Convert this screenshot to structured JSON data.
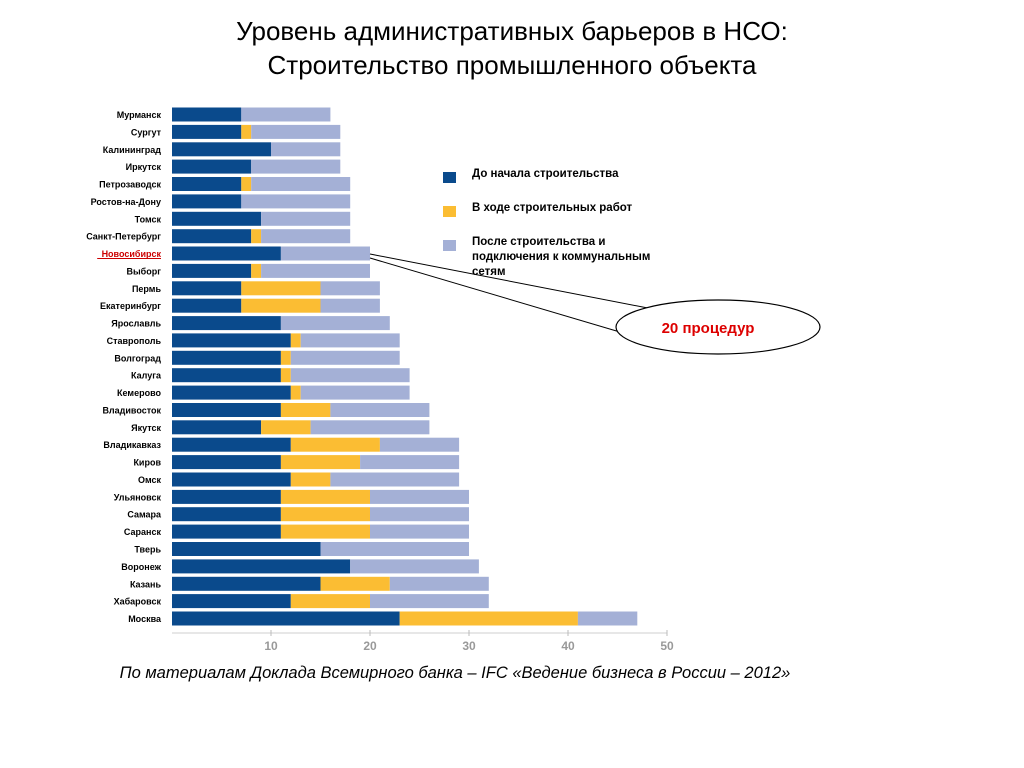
{
  "title": {
    "line1": "Уровень административных барьеров в НСО:",
    "line2": "Строительство промышленного объекта"
  },
  "source": "По материалам Доклада Всемирного банка – IFC «Ведение бизнеса в России – 2012»",
  "callout": "20 процедур",
  "highlight_city": "Новосибирск",
  "colors": {
    "before": "#0a4a8c",
    "during": "#fbbd33",
    "after": "#a4b0d6",
    "highlight_text": "#cc0000",
    "callout_text": "#dd0000",
    "axis_tick_text": "#999999"
  },
  "chart_data": {
    "type": "bar",
    "orientation": "horizontal",
    "stacked": true,
    "categories": [
      "Мурманск",
      "Сургут",
      "Калининград",
      "Иркутск",
      "Петрозаводск",
      "Ростов-на-Дону",
      "Томск",
      "Санкт-Петербург",
      "Новосибирск",
      "Выборг",
      "Пермь",
      "Екатеринбург",
      "Ярославль",
      "Ставрополь",
      "Волгоград",
      "Калуга",
      "Кемерово",
      "Владивосток",
      "Якутск",
      "Владикавказ",
      "Киров",
      "Омск",
      "Ульяновск",
      "Самара",
      "Саранск",
      "Тверь",
      "Воронеж",
      "Казань",
      "Хабаровск",
      "Москва"
    ],
    "series": [
      {
        "name": "До  начала строительства",
        "values": [
          7,
          7,
          10,
          8,
          7,
          7,
          9,
          8,
          11,
          8,
          7,
          7,
          11,
          12,
          11,
          11,
          12,
          11,
          9,
          12,
          11,
          12,
          11,
          11,
          11,
          15,
          18,
          15,
          12,
          23
        ]
      },
      {
        "name": "В ходе строительных работ",
        "values": [
          0,
          1,
          0,
          0,
          1,
          0,
          0,
          1,
          0,
          1,
          8,
          8,
          0,
          1,
          1,
          1,
          1,
          5,
          5,
          9,
          8,
          4,
          9,
          9,
          9,
          0,
          0,
          7,
          8,
          18
        ]
      },
      {
        "name": "После строительства и подключения к коммунальным сетям",
        "values": [
          9,
          9,
          7,
          9,
          10,
          11,
          9,
          9,
          9,
          11,
          6,
          6,
          11,
          10,
          11,
          12,
          11,
          10,
          12,
          8,
          10,
          13,
          10,
          10,
          10,
          15,
          13,
          10,
          12,
          6
        ]
      }
    ],
    "xlim": [
      0,
      50
    ],
    "xticks": [
      "10",
      "20",
      "30",
      "40",
      "50"
    ],
    "xlabel": "",
    "ylabel": "",
    "legend_position": "right",
    "grid": false
  }
}
